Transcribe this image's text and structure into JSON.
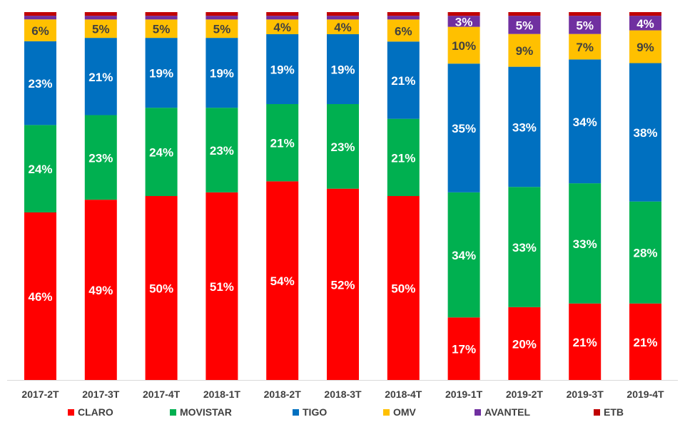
{
  "chart_data": {
    "type": "bar",
    "stacked": true,
    "percent_stacked": true,
    "title": "",
    "xlabel": "",
    "ylabel": "",
    "ylim": [
      0,
      100
    ],
    "grid": false,
    "legend_position": "bottom",
    "categories": [
      "2017-2T",
      "2017-3T",
      "2017-4T",
      "2018-1T",
      "2018-2T",
      "2018-3T",
      "2018-4T",
      "2019-1T",
      "2019-2T",
      "2019-3T",
      "2019-4T"
    ],
    "series": [
      {
        "name": "CLARO",
        "color": "#FF0000",
        "label_color": "#FFFFFF",
        "values": [
          46,
          49,
          50,
          51,
          54,
          52,
          50,
          17,
          20,
          21,
          21
        ],
        "labels": [
          "46%",
          "49%",
          "50%",
          "51%",
          "54%",
          "52%",
          "50%",
          "17%",
          "20%",
          "21%",
          "21%"
        ]
      },
      {
        "name": "MOVISTAR",
        "color": "#00B050",
        "label_color": "#FFFFFF",
        "values": [
          24,
          23,
          24,
          23,
          21,
          23,
          21,
          34,
          33,
          33,
          28
        ],
        "labels": [
          "24%",
          "23%",
          "24%",
          "23%",
          "21%",
          "23%",
          "21%",
          "34%",
          "33%",
          "33%",
          "28%"
        ]
      },
      {
        "name": "TIGO",
        "color": "#0070C0",
        "label_color": "#FFFFFF",
        "values": [
          23,
          21,
          19,
          19,
          19,
          19,
          21,
          35,
          33,
          34,
          38
        ],
        "labels": [
          "23%",
          "21%",
          "19%",
          "19%",
          "19%",
          "19%",
          "21%",
          "35%",
          "33%",
          "34%",
          "38%"
        ]
      },
      {
        "name": "OMV",
        "color": "#FFC000",
        "label_color": "#404040",
        "values": [
          6,
          5,
          5,
          5,
          4,
          4,
          6,
          10,
          9,
          7,
          9
        ],
        "labels": [
          "6%",
          "5%",
          "5%",
          "5%",
          "4%",
          "4%",
          "6%",
          "10%",
          "9%",
          "7%",
          "9%"
        ]
      },
      {
        "name": "AVANTEL",
        "color": "#7030A0",
        "label_color": "#FFFFFF",
        "values": [
          1,
          1,
          1,
          1,
          1,
          1,
          1,
          3,
          5,
          5,
          4
        ],
        "labels": [
          "",
          "",
          "",
          "",
          "",
          "",
          "",
          "3%",
          "5%",
          "5%",
          "4%"
        ]
      },
      {
        "name": "ETB",
        "color": "#C00000",
        "label_color": "#FFFFFF",
        "values": [
          1,
          1,
          1,
          1,
          1,
          1,
          1,
          1,
          1,
          1,
          1
        ],
        "labels": [
          "",
          "",
          "",
          "",
          "",
          "",
          "",
          "",
          "",
          "",
          ""
        ]
      }
    ]
  }
}
